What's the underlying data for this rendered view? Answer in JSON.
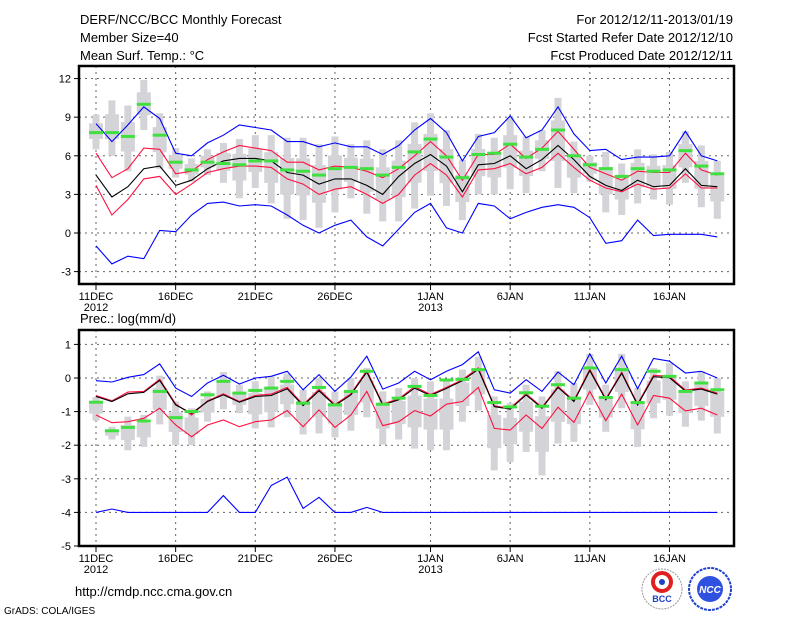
{
  "header": {
    "title": "DERF/NCC/BCC Monthly Forecast",
    "member_size": "Member Size=40",
    "variable": "Mean Surf. Temp.: °C",
    "period": "For 2012/12/11-2013/01/19",
    "fcst_started": "Fcst Started Refer Date 2012/12/10",
    "fcst_produced": "Fcst Produced Date 2012/12/11"
  },
  "footer": {
    "url": "http://cmdp.ncc.cma.gov.cn",
    "grads": "GrADS: COLA/IGES",
    "logo_bcc": "BCC",
    "logo_ncc": "NCC"
  },
  "colors": {
    "mean": "#000000",
    "spread": "#ff1040",
    "extreme": "#0000ff",
    "median": "#40e040",
    "box": "#d3d3d8"
  },
  "chart_data": [
    {
      "type": "line",
      "title": "Mean Surf. Temp.: °C",
      "ylim": [
        -4,
        13
      ],
      "yticks": [
        12,
        9,
        6,
        3,
        0,
        -3
      ],
      "ytick_labels": [
        "12",
        "9",
        "6",
        "3",
        "0",
        "-3"
      ],
      "xticks": [
        0,
        5,
        10,
        15,
        21,
        26,
        31,
        36
      ],
      "xtick_labels": [
        "11DEC",
        "16DEC",
        "21DEC",
        "26DEC",
        "1JAN",
        "6JAN",
        "11JAN",
        "16JAN"
      ],
      "year_labels": [
        {
          "day": 0,
          "label": "2012"
        },
        {
          "day": 21,
          "label": "2013"
        }
      ],
      "days": 40,
      "mean": [
        4.5,
        2.8,
        3.6,
        5.0,
        5.2,
        3.7,
        4.1,
        5.0,
        5.6,
        5.8,
        5.8,
        5.6,
        4.7,
        4.5,
        3.8,
        4.2,
        4.2,
        3.7,
        3.0,
        4.4,
        5.4,
        6.1,
        5.2,
        3.2,
        5.3,
        5.4,
        6.0,
        5.0,
        5.7,
        6.8,
        5.7,
        4.4,
        3.7,
        3.3,
        4.1,
        3.6,
        3.7,
        5.0,
        3.7,
        3.6
      ],
      "spread_upper": [
        6.2,
        4.3,
        5.0,
        6.6,
        6.5,
        4.6,
        4.8,
        5.7,
        6.3,
        6.8,
        6.6,
        6.4,
        5.5,
        5.5,
        4.9,
        5.2,
        5.1,
        4.8,
        4.3,
        5.0,
        6.0,
        7.1,
        6.0,
        4.1,
        6.1,
        6.1,
        6.9,
        5.8,
        6.6,
        7.9,
        6.5,
        5.1,
        4.6,
        4.1,
        4.8,
        4.7,
        4.7,
        6.2,
        4.9,
        4.5
      ],
      "spread_lower": [
        3.7,
        1.4,
        2.6,
        4.2,
        4.4,
        3.0,
        3.8,
        4.7,
        5.0,
        5.2,
        5.2,
        5.1,
        4.2,
        3.8,
        3.0,
        3.4,
        3.6,
        3.0,
        2.3,
        3.0,
        4.5,
        5.4,
        4.5,
        2.8,
        4.9,
        5.0,
        5.4,
        4.6,
        5.1,
        6.2,
        5.1,
        4.1,
        3.5,
        3.2,
        3.8,
        3.4,
        3.5,
        4.6,
        3.5,
        3.5
      ],
      "max": [
        8.5,
        7.1,
        8.4,
        9.8,
        8.9,
        6.2,
        6.0,
        7.0,
        7.6,
        8.4,
        8.2,
        8.0,
        7.1,
        7.1,
        6.7,
        7.0,
        6.7,
        6.7,
        6.1,
        6.8,
        8.0,
        8.9,
        7.8,
        5.6,
        7.5,
        7.8,
        9.1,
        7.4,
        8.0,
        9.8,
        7.7,
        6.4,
        6.5,
        5.7,
        5.9,
        5.9,
        6.0,
        7.9,
        6.0,
        5.6
      ],
      "min": [
        -1.0,
        -2.4,
        -1.8,
        -2.0,
        0.2,
        0.1,
        1.4,
        2.3,
        2.4,
        2.1,
        2.2,
        2.1,
        1.4,
        0.6,
        0.0,
        0.6,
        1.0,
        -0.3,
        -1.0,
        0.3,
        1.6,
        2.3,
        0.4,
        0.0,
        2.3,
        2.1,
        1.1,
        1.6,
        2.0,
        2.2,
        2.0,
        1.2,
        -0.8,
        -0.6,
        1.0,
        -0.2,
        -0.1,
        -0.1,
        -0.1,
        -0.3
      ],
      "median": [
        7.8,
        7.8,
        7.5,
        10.0,
        7.6,
        5.5,
        4.9,
        5.5,
        5.4,
        5.3,
        5.6,
        5.6,
        4.9,
        4.8,
        4.5,
        5.0,
        5.1,
        5.0,
        4.5,
        5.1,
        6.3,
        7.3,
        5.9,
        4.3,
        6.1,
        6.2,
        6.9,
        5.9,
        6.5,
        8.0,
        6.0,
        5.3,
        5.0,
        4.4,
        5.0,
        4.8,
        4.9,
        6.4,
        5.2,
        4.6
      ],
      "box_low": [
        6.5,
        6.0,
        4.8,
        8.0,
        5.0,
        4.3,
        4.0,
        4.5,
        3.9,
        2.7,
        3.5,
        2.3,
        1.1,
        1.0,
        0.4,
        1.6,
        2.7,
        1.5,
        0.9,
        0.9,
        1.9,
        2.9,
        2.1,
        1.0,
        3.0,
        3.0,
        3.4,
        3.1,
        4.8,
        3.5,
        3.1,
        4.0,
        1.6,
        1.4,
        2.3,
        2.6,
        2.2,
        3.9,
        2.0,
        1.1
      ],
      "box_high": [
        9.2,
        10.3,
        9.9,
        11.9,
        9.3,
        6.6,
        5.8,
        6.5,
        7.0,
        7.3,
        7.6,
        7.6,
        7.4,
        7.4,
        6.9,
        7.5,
        6.9,
        7.2,
        6.5,
        7.2,
        8.6,
        9.3,
        8.0,
        5.7,
        7.7,
        7.4,
        9.0,
        7.5,
        8.0,
        10.5,
        7.1,
        6.0,
        6.3,
        5.4,
        6.5,
        6.1,
        6.3,
        7.9,
        6.8,
        5.6
      ]
    },
    {
      "type": "line",
      "title": "Prec.: log(mm/d)",
      "ylim": [
        -5,
        1.3
      ],
      "yticks": [
        1,
        0,
        -1,
        -2,
        -3,
        -4,
        -5
      ],
      "ytick_labels": [
        "1",
        "0",
        "-1",
        "-2",
        "-3",
        "-4",
        "-5"
      ],
      "xticks": [
        0,
        5,
        10,
        15,
        21,
        26,
        31,
        36
      ],
      "xtick_labels": [
        "11DEC",
        "16DEC",
        "21DEC",
        "26DEC",
        "1JAN",
        "6JAN",
        "11JAN",
        "16JAN"
      ],
      "year_labels": [
        {
          "day": 0,
          "label": "2012"
        },
        {
          "day": 21,
          "label": "2013"
        }
      ],
      "days": 40,
      "mean": [
        -0.55,
        -0.7,
        -0.47,
        -0.43,
        -0.07,
        -0.8,
        -1.05,
        -0.7,
        -0.5,
        -0.72,
        -0.55,
        -0.52,
        -0.32,
        -0.82,
        -0.38,
        -0.82,
        -0.5,
        0.18,
        -0.8,
        -0.65,
        -0.3,
        -0.52,
        -0.31,
        -0.08,
        0.26,
        -0.85,
        -0.93,
        -0.5,
        -0.9,
        -0.28,
        -0.7,
        0.22,
        -0.65,
        0.14,
        -0.8,
        0.04,
        0.01,
        -0.39,
        -0.33,
        -0.48
      ],
      "spread_upper": [
        -0.52,
        -0.68,
        -0.42,
        -0.4,
        -0.04,
        -0.77,
        -1.1,
        -0.68,
        -0.47,
        -0.7,
        -0.52,
        -0.48,
        -0.28,
        -0.79,
        -0.34,
        -0.79,
        -0.47,
        0.22,
        -0.77,
        -0.62,
        -0.26,
        -0.49,
        -0.28,
        -0.05,
        0.3,
        -0.83,
        -0.9,
        -0.47,
        -0.87,
        -0.25,
        -0.67,
        0.26,
        -0.62,
        0.17,
        -0.77,
        0.08,
        0.05,
        -0.36,
        -0.3,
        -0.45
      ],
      "spread_lower": [
        -1.1,
        -1.33,
        -1.3,
        -1.2,
        -0.9,
        -1.4,
        -1.75,
        -1.4,
        -1.25,
        -1.45,
        -1.3,
        -1.25,
        -0.97,
        -1.45,
        -0.95,
        -1.47,
        -1.1,
        -0.4,
        -1.42,
        -1.3,
        -0.97,
        -1.13,
        -0.78,
        -0.7,
        -0.28,
        -1.5,
        -1.55,
        -1.1,
        -1.5,
        -0.87,
        -1.32,
        -0.4,
        -1.27,
        -0.48,
        -1.4,
        -0.52,
        -0.6,
        -0.98,
        -0.9,
        -1.1
      ],
      "max": [
        -0.08,
        -0.12,
        0.02,
        0.1,
        0.42,
        -0.3,
        -0.55,
        -0.15,
        0.08,
        -0.18,
        0.0,
        0.05,
        0.2,
        -0.35,
        0.1,
        -0.4,
        0.03,
        0.65,
        -0.33,
        -0.15,
        0.2,
        -0.05,
        0.2,
        0.4,
        0.78,
        -0.35,
        -0.45,
        -0.05,
        -0.4,
        0.18,
        -0.2,
        0.72,
        -0.15,
        0.65,
        -0.32,
        0.58,
        0.5,
        0.15,
        0.2,
        0.0
      ],
      "min": [
        -4,
        -3.9,
        -4,
        -4,
        -4,
        -4,
        -4,
        -4,
        -3.5,
        -4,
        -4,
        -3.2,
        -2.95,
        -3.88,
        -3.55,
        -4,
        -4,
        -3.85,
        -4,
        -4,
        -4,
        -4,
        -4,
        -4,
        -4,
        -4,
        -4,
        -4,
        -4,
        -4,
        -4,
        -4,
        -4,
        -4,
        -4,
        -4,
        -4,
        -4,
        -4,
        -4
      ],
      "median": [
        -0.72,
        -1.57,
        -1.47,
        -1.28,
        -0.4,
        -1.18,
        -1.0,
        -0.5,
        -0.1,
        -0.45,
        -0.37,
        -0.3,
        -0.1,
        -0.75,
        -0.28,
        -0.8,
        -0.4,
        0.2,
        -0.78,
        -0.6,
        -0.25,
        -0.52,
        -0.06,
        -0.04,
        0.25,
        -0.73,
        -0.86,
        -0.44,
        -0.84,
        -0.2,
        -0.6,
        0.3,
        -0.58,
        0.25,
        -0.73,
        0.2,
        0.05,
        -0.4,
        -0.15,
        -0.35
      ],
      "box_low": [
        -1.27,
        -1.83,
        -2.15,
        -2.05,
        -1.38,
        -2.0,
        -2.0,
        -1.3,
        -0.93,
        -1.05,
        -1.5,
        -1.47,
        -1.17,
        -1.68,
        -1.65,
        -1.77,
        -1.57,
        -1.17,
        -1.98,
        -1.83,
        -2.1,
        -2.15,
        -2.15,
        -1.3,
        -0.97,
        -2.75,
        -2.5,
        -2.2,
        -2.9,
        -1.95,
        -1.9,
        -0.8,
        -1.6,
        -0.9,
        -2.05,
        -1.2,
        -1.12,
        -1.45,
        -1.27,
        -1.65
      ],
      "box_high": [
        -0.57,
        -1.45,
        -1.15,
        -1.1,
        0.07,
        -0.7,
        -0.9,
        -0.4,
        0.18,
        -0.2,
        -0.1,
        0.05,
        0.13,
        -0.35,
        0.0,
        -0.4,
        0.0,
        0.3,
        -0.4,
        -0.3,
        0.0,
        -0.1,
        -0.1,
        0.25,
        0.63,
        -0.55,
        -0.75,
        -0.2,
        -0.55,
        0.2,
        -0.15,
        0.72,
        -0.2,
        0.72,
        -0.3,
        0.3,
        0.45,
        -0.1,
        0.2,
        0.0
      ]
    }
  ]
}
